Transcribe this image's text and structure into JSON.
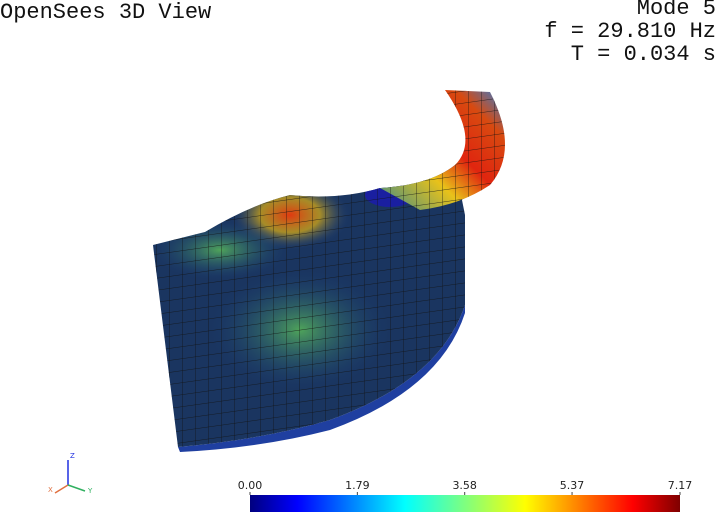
{
  "view": {
    "title": "OpenSees 3D View",
    "mode": "Mode 5",
    "frequency": "f = 29.810 Hz",
    "period": "T = 0.034 s"
  },
  "colorbar": {
    "colormap": "jet",
    "lim": [
      0,
      7.17
    ],
    "ticks": [
      {
        "value": 0,
        "label": "0.00"
      },
      1.79,
      3.58,
      5.37,
      7.17
    ]
  },
  "axes_triad": {
    "z": "Z",
    "x": "X",
    "y": "Y"
  }
}
